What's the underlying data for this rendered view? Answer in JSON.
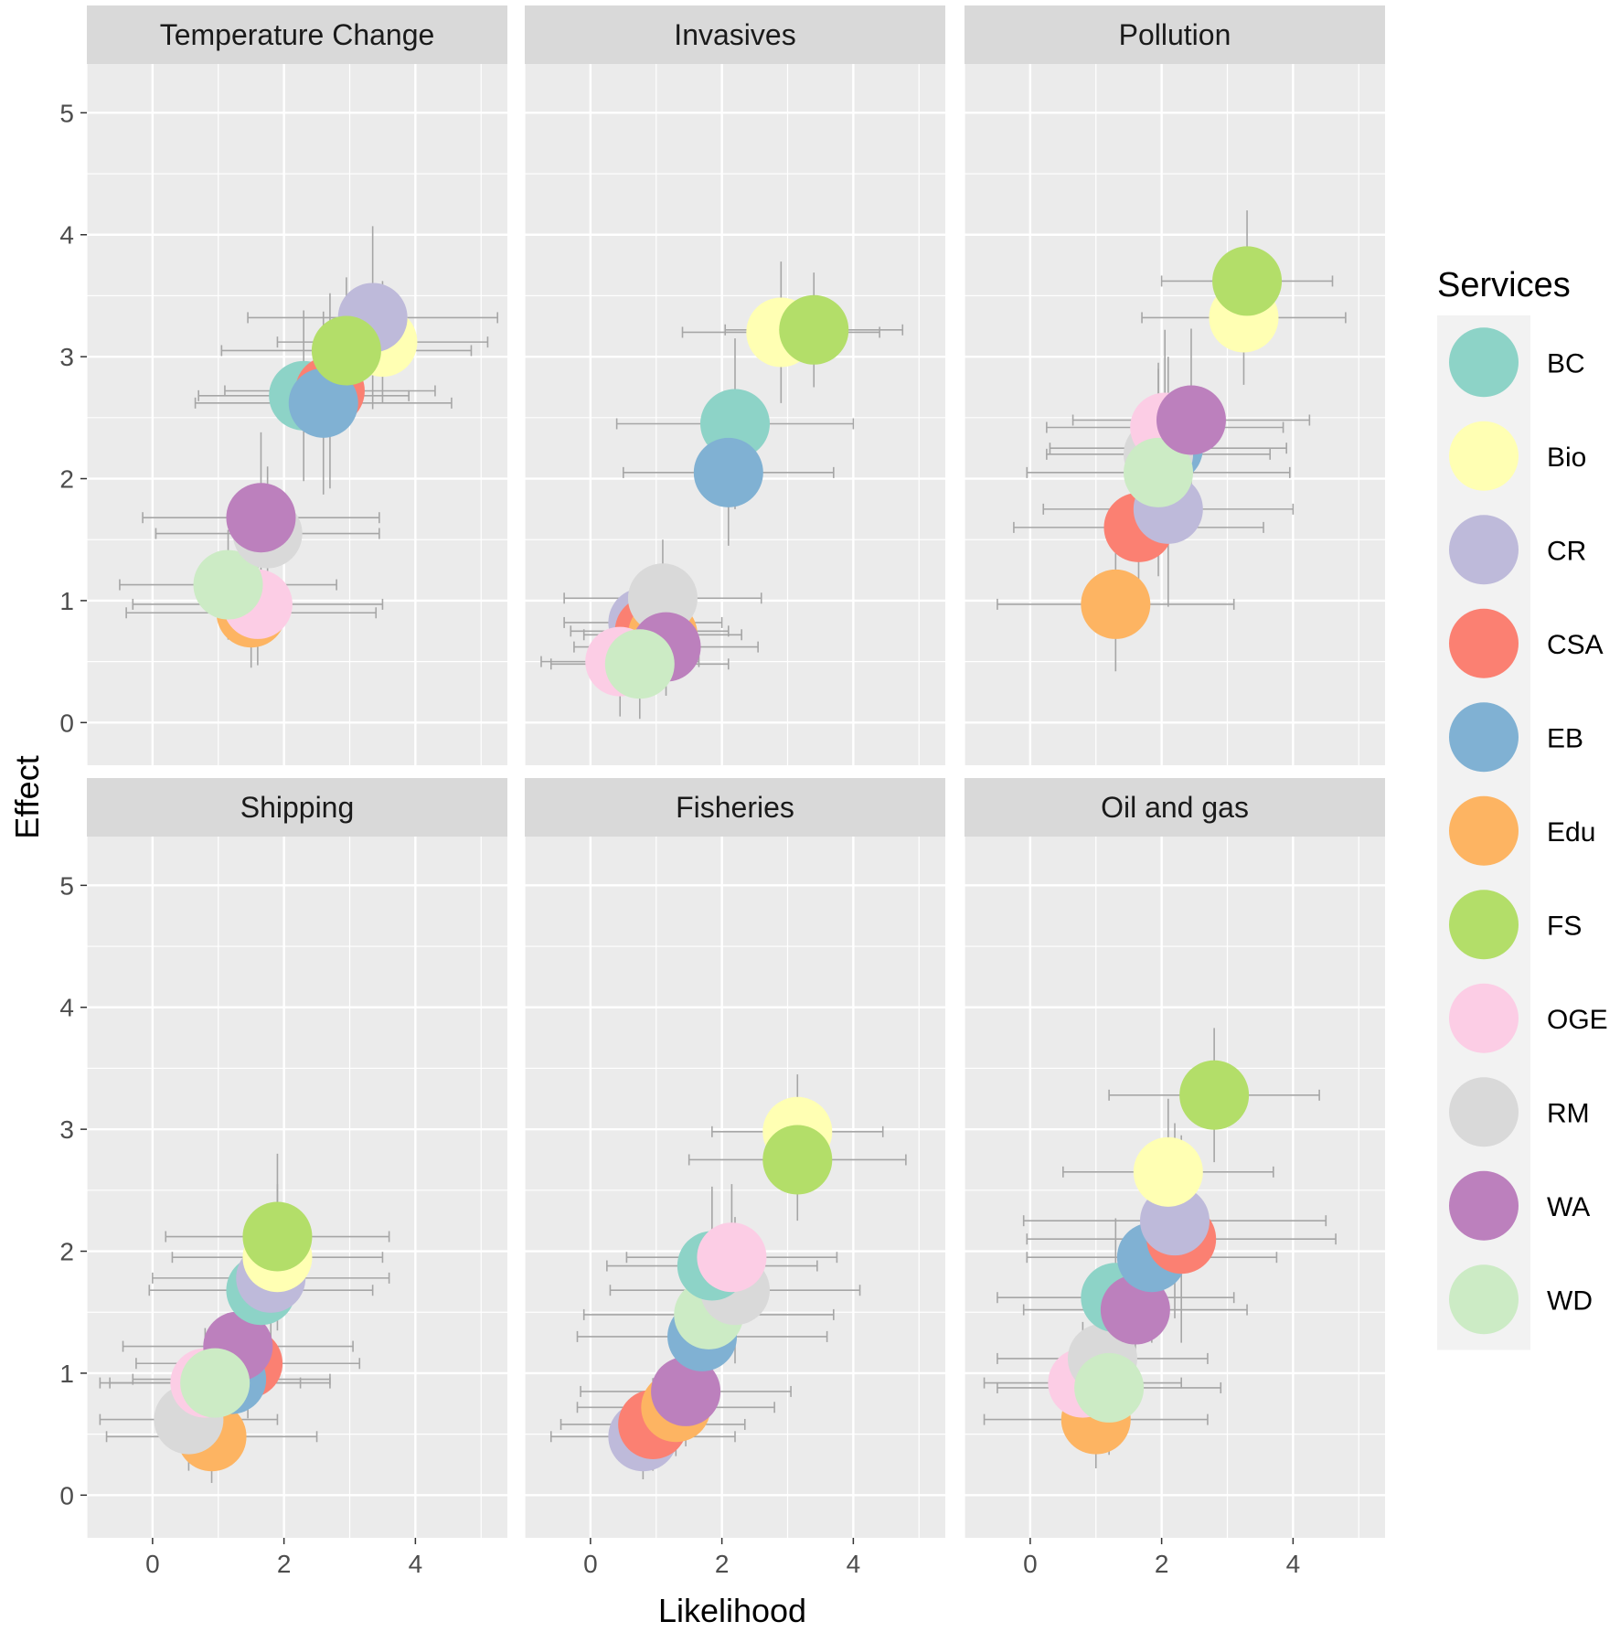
{
  "chart_data": {
    "type": "scatter",
    "xlabel": "Likelihood",
    "ylabel": "Effect",
    "xlim": [
      -1.0,
      5.4
    ],
    "ylim": [
      -0.35,
      5.4
    ],
    "x_ticks": [
      0,
      2,
      4
    ],
    "y_ticks": [
      0,
      1,
      2,
      3,
      4,
      5
    ],
    "legend": {
      "title": "Services",
      "position": "right",
      "items": [
        {
          "label": "BC",
          "color": "#8dd3c7"
        },
        {
          "label": "Bio",
          "color": "#ffffb3"
        },
        {
          "label": "CR",
          "color": "#bebada"
        },
        {
          "label": "CSA",
          "color": "#fb8072"
        },
        {
          "label": "EB",
          "color": "#80b1d3"
        },
        {
          "label": "Edu",
          "color": "#fdb462"
        },
        {
          "label": "FS",
          "color": "#b3de69"
        },
        {
          "label": "OGE",
          "color": "#fccde5"
        },
        {
          "label": "RM",
          "color": "#d9d9d9"
        },
        {
          "label": "WA",
          "color": "#bc80bd"
        },
        {
          "label": "WD",
          "color": "#ccebc5"
        }
      ]
    },
    "panels": [
      {
        "title": "Temperature Change",
        "points": [
          {
            "service": "Edu",
            "x": 1.5,
            "y": 0.9,
            "xerr": 1.9,
            "yerr": 0.45
          },
          {
            "service": "OGE",
            "x": 1.6,
            "y": 0.97,
            "xerr": 1.9,
            "yerr": 0.5
          },
          {
            "service": "WD",
            "x": 1.15,
            "y": 1.13,
            "xerr": 1.65,
            "yerr": 0.45
          },
          {
            "service": "RM",
            "x": 1.75,
            "y": 1.55,
            "xerr": 1.7,
            "yerr": 0.55
          },
          {
            "service": "WA",
            "x": 1.65,
            "y": 1.68,
            "xerr": 1.8,
            "yerr": 0.7
          },
          {
            "service": "BC",
            "x": 2.3,
            "y": 2.68,
            "xerr": 1.6,
            "yerr": 0.7
          },
          {
            "service": "CSA",
            "x": 2.7,
            "y": 2.72,
            "xerr": 1.6,
            "yerr": 0.8
          },
          {
            "service": "EB",
            "x": 2.6,
            "y": 2.62,
            "xerr": 1.95,
            "yerr": 0.75
          },
          {
            "service": "Bio",
            "x": 3.5,
            "y": 3.12,
            "xerr": 1.6,
            "yerr": 0.5
          },
          {
            "service": "CR",
            "x": 3.35,
            "y": 3.32,
            "xerr": 1.9,
            "yerr": 0.75
          },
          {
            "service": "FS",
            "x": 2.95,
            "y": 3.05,
            "xerr": 1.9,
            "yerr": 0.6
          }
        ]
      },
      {
        "title": "Invasives",
        "points": [
          {
            "service": "CR",
            "x": 0.8,
            "y": 0.82,
            "xerr": 1.2,
            "yerr": 0.4
          },
          {
            "service": "CSA",
            "x": 0.9,
            "y": 0.75,
            "xerr": 1.2,
            "yerr": 0.4
          },
          {
            "service": "Edu",
            "x": 1.1,
            "y": 0.72,
            "xerr": 1.2,
            "yerr": 0.4
          },
          {
            "service": "RM",
            "x": 1.1,
            "y": 1.02,
            "xerr": 1.5,
            "yerr": 0.48
          },
          {
            "service": "WA",
            "x": 1.15,
            "y": 0.62,
            "xerr": 1.4,
            "yerr": 0.4
          },
          {
            "service": "OGE",
            "x": 0.45,
            "y": 0.5,
            "xerr": 1.2,
            "yerr": 0.45
          },
          {
            "service": "WD",
            "x": 0.75,
            "y": 0.48,
            "xerr": 1.35,
            "yerr": 0.45
          },
          {
            "service": "BC",
            "x": 2.2,
            "y": 2.45,
            "xerr": 1.8,
            "yerr": 0.7
          },
          {
            "service": "EB",
            "x": 2.1,
            "y": 2.05,
            "xerr": 1.6,
            "yerr": 0.6
          },
          {
            "service": "Bio",
            "x": 2.9,
            "y": 3.2,
            "xerr": 1.5,
            "yerr": 0.58
          },
          {
            "service": "FS",
            "x": 3.4,
            "y": 3.22,
            "xerr": 1.35,
            "yerr": 0.47
          }
        ]
      },
      {
        "title": "Pollution",
        "points": [
          {
            "service": "Edu",
            "x": 1.3,
            "y": 0.97,
            "xerr": 1.8,
            "yerr": 0.55
          },
          {
            "service": "CSA",
            "x": 1.65,
            "y": 1.6,
            "xerr": 1.9,
            "yerr": 0.7
          },
          {
            "service": "CR",
            "x": 2.1,
            "y": 1.75,
            "xerr": 1.9,
            "yerr": 0.8
          },
          {
            "service": "EB",
            "x": 2.1,
            "y": 2.25,
            "xerr": 1.8,
            "yerr": 0.75
          },
          {
            "service": "RM",
            "x": 1.95,
            "y": 2.2,
            "xerr": 1.7,
            "yerr": 0.75
          },
          {
            "service": "OGE",
            "x": 2.05,
            "y": 2.42,
            "xerr": 1.8,
            "yerr": 0.8
          },
          {
            "service": "WD",
            "x": 1.95,
            "y": 2.05,
            "xerr": 2.0,
            "yerr": 0.85
          },
          {
            "service": "WA",
            "x": 2.45,
            "y": 2.48,
            "xerr": 1.8,
            "yerr": 0.75
          },
          {
            "service": "Bio",
            "x": 3.25,
            "y": 3.32,
            "xerr": 1.55,
            "yerr": 0.55
          },
          {
            "service": "FS",
            "x": 3.3,
            "y": 3.62,
            "xerr": 1.3,
            "yerr": 0.58
          }
        ]
      },
      {
        "title": "Shipping",
        "points": [
          {
            "service": "Edu",
            "x": 0.9,
            "y": 0.48,
            "xerr": 1.6,
            "yerr": 0.38
          },
          {
            "service": "RM",
            "x": 0.55,
            "y": 0.62,
            "xerr": 1.35,
            "yerr": 0.42
          },
          {
            "service": "CSA",
            "x": 1.45,
            "y": 1.08,
            "xerr": 1.7,
            "yerr": 0.45
          },
          {
            "service": "EB",
            "x": 1.2,
            "y": 0.95,
            "xerr": 1.5,
            "yerr": 0.45
          },
          {
            "service": "OGE",
            "x": 0.8,
            "y": 0.92,
            "xerr": 1.45,
            "yerr": 0.45
          },
          {
            "service": "WA",
            "x": 1.3,
            "y": 1.22,
            "xerr": 1.75,
            "yerr": 0.5
          },
          {
            "service": "WD",
            "x": 0.95,
            "y": 0.92,
            "xerr": 1.75,
            "yerr": 0.45
          },
          {
            "service": "BC",
            "x": 1.65,
            "y": 1.68,
            "xerr": 1.7,
            "yerr": 0.6
          },
          {
            "service": "CR",
            "x": 1.8,
            "y": 1.78,
            "xerr": 1.8,
            "yerr": 0.6
          },
          {
            "service": "Bio",
            "x": 1.9,
            "y": 1.95,
            "xerr": 1.6,
            "yerr": 0.6
          },
          {
            "service": "FS",
            "x": 1.9,
            "y": 2.12,
            "xerr": 1.7,
            "yerr": 0.68
          }
        ]
      },
      {
        "title": "Fisheries",
        "points": [
          {
            "service": "CR",
            "x": 0.8,
            "y": 0.48,
            "xerr": 1.4,
            "yerr": 0.35
          },
          {
            "service": "CSA",
            "x": 0.95,
            "y": 0.58,
            "xerr": 1.4,
            "yerr": 0.38
          },
          {
            "service": "Edu",
            "x": 1.3,
            "y": 0.72,
            "xerr": 1.5,
            "yerr": 0.4
          },
          {
            "service": "WA",
            "x": 1.45,
            "y": 0.85,
            "xerr": 1.6,
            "yerr": 0.45
          },
          {
            "service": "EB",
            "x": 1.7,
            "y": 1.3,
            "xerr": 1.9,
            "yerr": 0.55
          },
          {
            "service": "WD",
            "x": 1.8,
            "y": 1.48,
            "xerr": 1.9,
            "yerr": 0.55
          },
          {
            "service": "RM",
            "x": 2.2,
            "y": 1.68,
            "xerr": 1.9,
            "yerr": 0.6
          },
          {
            "service": "BC",
            "x": 1.85,
            "y": 1.88,
            "xerr": 1.6,
            "yerr": 0.65
          },
          {
            "service": "OGE",
            "x": 2.15,
            "y": 1.95,
            "xerr": 1.6,
            "yerr": 0.6
          },
          {
            "service": "Bio",
            "x": 3.15,
            "y": 2.98,
            "xerr": 1.3,
            "yerr": 0.47
          },
          {
            "service": "FS",
            "x": 3.15,
            "y": 2.75,
            "xerr": 1.65,
            "yerr": 0.5
          }
        ]
      },
      {
        "title": "Oil and gas",
        "points": [
          {
            "service": "Edu",
            "x": 1.0,
            "y": 0.62,
            "xerr": 1.7,
            "yerr": 0.4
          },
          {
            "service": "OGE",
            "x": 0.8,
            "y": 0.92,
            "xerr": 1.5,
            "yerr": 0.5
          },
          {
            "service": "RM",
            "x": 1.1,
            "y": 1.12,
            "xerr": 1.6,
            "yerr": 0.55
          },
          {
            "service": "WD",
            "x": 1.2,
            "y": 0.88,
            "xerr": 1.7,
            "yerr": 0.55
          },
          {
            "service": "BC",
            "x": 1.3,
            "y": 1.62,
            "xerr": 1.8,
            "yerr": 0.65
          },
          {
            "service": "WA",
            "x": 1.6,
            "y": 1.52,
            "xerr": 1.7,
            "yerr": 0.6
          },
          {
            "service": "EB",
            "x": 1.85,
            "y": 1.95,
            "xerr": 1.9,
            "yerr": 0.7
          },
          {
            "service": "CSA",
            "x": 2.3,
            "y": 2.1,
            "xerr": 2.35,
            "yerr": 0.85
          },
          {
            "service": "CR",
            "x": 2.2,
            "y": 2.25,
            "xerr": 2.3,
            "yerr": 0.8
          },
          {
            "service": "Bio",
            "x": 2.1,
            "y": 2.65,
            "xerr": 1.6,
            "yerr": 0.6
          },
          {
            "service": "FS",
            "x": 2.8,
            "y": 3.28,
            "xerr": 1.6,
            "yerr": 0.55
          }
        ]
      }
    ]
  }
}
